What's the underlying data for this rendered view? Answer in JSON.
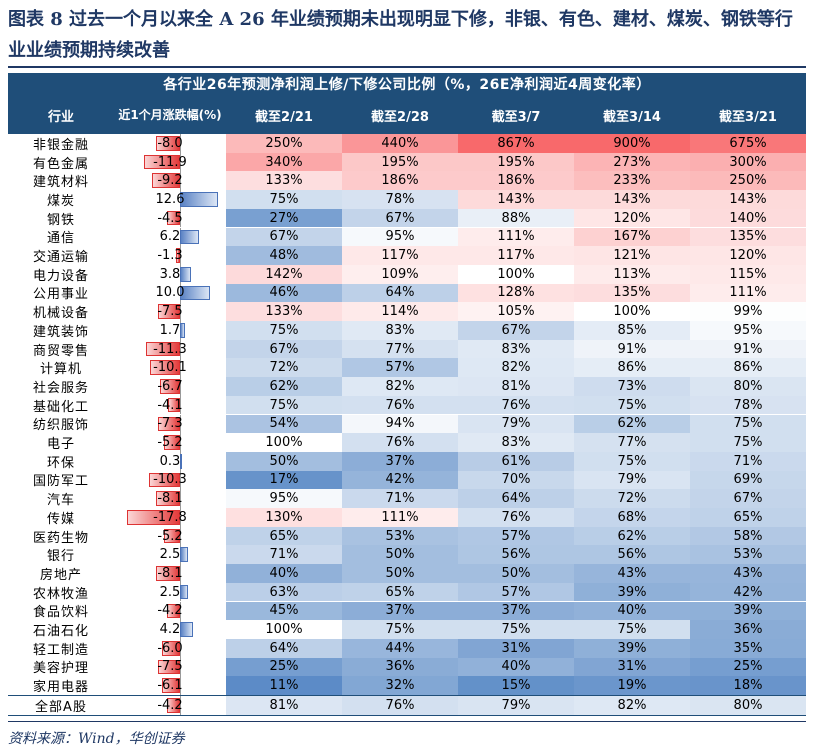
{
  "title": "图表 8   过去一个月以来全 A 26 年业绩预期未出现明显下修，非银、有色、建材、煤炭、钢铁等行业业绩预期持续改善",
  "header": {
    "main": "各行业26年预测净利润上修/下修公司比例（%，26E净利润近4周变化率）",
    "col_industry": "行业",
    "col_change": "近1个月涨跌幅(%)",
    "cols": [
      "截至2/21",
      "截至2/28",
      "截至3/7",
      "截至3/14",
      "截至3/21"
    ]
  },
  "rows": [
    {
      "name": "非银金融",
      "change": "-8.0",
      "values": [
        "250%",
        "440%",
        "867%",
        "900%",
        "675%"
      ]
    },
    {
      "name": "有色金属",
      "change": "-11.9",
      "values": [
        "340%",
        "195%",
        "195%",
        "273%",
        "300%"
      ]
    },
    {
      "name": "建筑材料",
      "change": "-9.2",
      "values": [
        "133%",
        "186%",
        "186%",
        "233%",
        "250%"
      ]
    },
    {
      "name": "煤炭",
      "change": "12.6",
      "values": [
        "75%",
        "78%",
        "143%",
        "143%",
        "143%"
      ]
    },
    {
      "name": "钢铁",
      "change": "-4.5",
      "values": [
        "27%",
        "67%",
        "88%",
        "120%",
        "140%"
      ]
    },
    {
      "name": "通信",
      "change": "6.2",
      "values": [
        "67%",
        "95%",
        "111%",
        "167%",
        "135%"
      ]
    },
    {
      "name": "交通运输",
      "change": "-1.3",
      "values": [
        "48%",
        "117%",
        "117%",
        "121%",
        "120%"
      ]
    },
    {
      "name": "电力设备",
      "change": "3.8",
      "values": [
        "142%",
        "109%",
        "100%",
        "113%",
        "115%"
      ]
    },
    {
      "name": "公用事业",
      "change": "10.0",
      "values": [
        "46%",
        "64%",
        "128%",
        "135%",
        "111%"
      ]
    },
    {
      "name": "机械设备",
      "change": "-7.5",
      "values": [
        "133%",
        "114%",
        "105%",
        "100%",
        "99%"
      ]
    },
    {
      "name": "建筑装饰",
      "change": "1.7",
      "values": [
        "75%",
        "83%",
        "67%",
        "85%",
        "95%"
      ]
    },
    {
      "name": "商贸零售",
      "change": "-11.3",
      "values": [
        "67%",
        "77%",
        "83%",
        "91%",
        "91%"
      ]
    },
    {
      "name": "计算机",
      "change": "-10.1",
      "values": [
        "72%",
        "57%",
        "82%",
        "86%",
        "86%"
      ]
    },
    {
      "name": "社会服务",
      "change": "-6.7",
      "values": [
        "62%",
        "82%",
        "81%",
        "73%",
        "80%"
      ]
    },
    {
      "name": "基础化工",
      "change": "-4.1",
      "values": [
        "75%",
        "76%",
        "76%",
        "75%",
        "78%"
      ]
    },
    {
      "name": "纺织服饰",
      "change": "-7.3",
      "values": [
        "54%",
        "94%",
        "79%",
        "62%",
        "75%"
      ]
    },
    {
      "name": "电子",
      "change": "-5.2",
      "values": [
        "100%",
        "76%",
        "83%",
        "77%",
        "75%"
      ]
    },
    {
      "name": "环保",
      "change": "0.3",
      "values": [
        "50%",
        "37%",
        "61%",
        "75%",
        "71%"
      ]
    },
    {
      "name": "国防军工",
      "change": "-10.3",
      "values": [
        "17%",
        "42%",
        "70%",
        "79%",
        "69%"
      ]
    },
    {
      "name": "汽车",
      "change": "-8.1",
      "values": [
        "95%",
        "71%",
        "64%",
        "72%",
        "67%"
      ]
    },
    {
      "name": "传媒",
      "change": "-17.8",
      "values": [
        "130%",
        "111%",
        "76%",
        "68%",
        "65%"
      ]
    },
    {
      "name": "医药生物",
      "change": "-5.2",
      "values": [
        "65%",
        "53%",
        "57%",
        "62%",
        "58%"
      ]
    },
    {
      "name": "银行",
      "change": "2.5",
      "values": [
        "71%",
        "50%",
        "56%",
        "56%",
        "53%"
      ]
    },
    {
      "name": "房地产",
      "change": "-8.1",
      "values": [
        "40%",
        "50%",
        "50%",
        "43%",
        "43%"
      ]
    },
    {
      "name": "农林牧渔",
      "change": "2.5",
      "values": [
        "63%",
        "65%",
        "57%",
        "39%",
        "42%"
      ]
    },
    {
      "name": "食品饮料",
      "change": "-4.2",
      "values": [
        "45%",
        "37%",
        "37%",
        "40%",
        "39%"
      ]
    },
    {
      "name": "石油石化",
      "change": "4.2",
      "values": [
        "100%",
        "75%",
        "75%",
        "75%",
        "36%"
      ]
    },
    {
      "name": "轻工制造",
      "change": "-6.0",
      "values": [
        "64%",
        "44%",
        "31%",
        "39%",
        "35%"
      ]
    },
    {
      "name": "美容护理",
      "change": "-7.5",
      "values": [
        "25%",
        "36%",
        "40%",
        "31%",
        "25%"
      ]
    },
    {
      "name": "家用电器",
      "change": "-6.1",
      "values": [
        "11%",
        "32%",
        "15%",
        "19%",
        "18%"
      ]
    },
    {
      "name": "全部A股",
      "change": "-4.2",
      "values": [
        "81%",
        "76%",
        "79%",
        "82%",
        "80%"
      ]
    }
  ],
  "footer": "资料来源：Wind，华创证券",
  "colors": {
    "header": "#1f4e79",
    "high": "#f8696b",
    "mid": "#ffffff",
    "low": "#5a8ac6"
  }
}
